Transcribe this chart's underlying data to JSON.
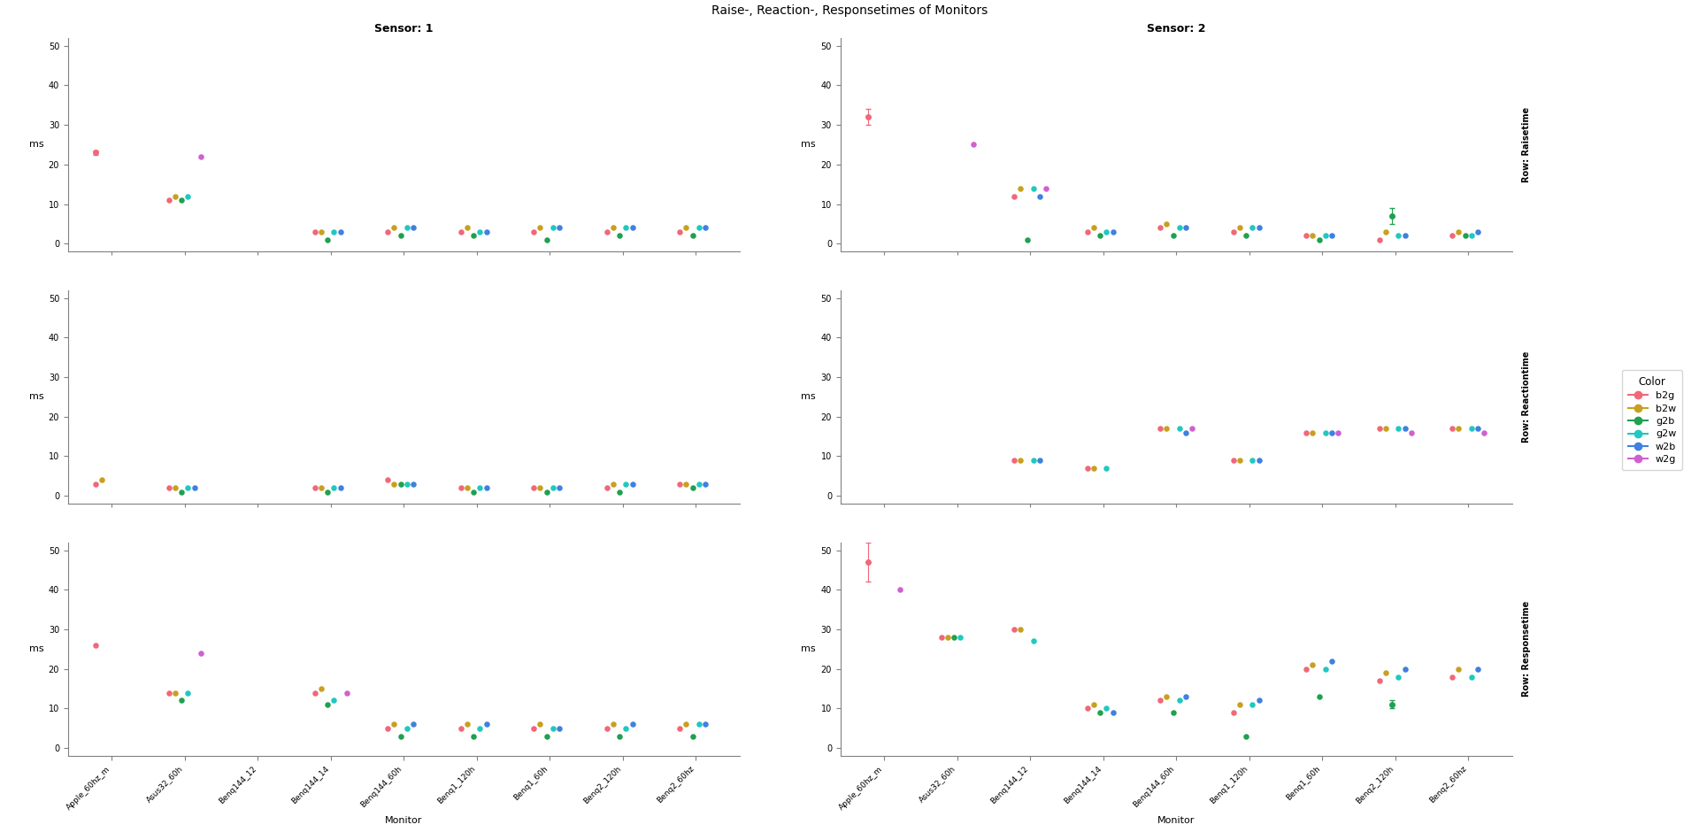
{
  "title": "Raise-, Reaction-, Responsetimes of Monitors",
  "sensors": [
    "Sensor: 1",
    "Sensor: 2"
  ],
  "rows": [
    "Raisetime",
    "Reactiontime",
    "Responsetime"
  ],
  "row_labels": [
    "Row: Raisetime",
    "Row: Reactiontime",
    "Row: Responsetime"
  ],
  "monitors": [
    "Apple_60hz_m",
    "Asus32_60h",
    "Benq144_12",
    "Benq144_14",
    "Benq144_60h",
    "Benq1_120h",
    "Benq1_60h",
    "Benq2_120h",
    "Benq2_60hz"
  ],
  "colors": {
    "b2g": "#F06878",
    "b2w": "#C8A020",
    "g2b": "#20A050",
    "g2w": "#20C8C0",
    "w2b": "#4080E0",
    "w2g": "#D060D0"
  },
  "color_order": [
    "b2g",
    "b2w",
    "g2b",
    "g2w",
    "w2b",
    "w2g"
  ],
  "ylabel": "ms",
  "xlabel": "Monitor",
  "data": {
    "sensor1": {
      "Raisetime": {
        "Apple_60hz_m": {
          "b2g": 23,
          "b2g_err": [
            0.5,
            0.5
          ]
        },
        "Asus32_60h": {
          "b2g": 11,
          "b2w": 12,
          "g2b": 11,
          "g2w": 12,
          "w2g": 22
        },
        "Benq144_12": {},
        "Benq144_14": {
          "b2g": 3,
          "b2w": 3,
          "g2b": 1,
          "g2w": 3,
          "w2b": 3
        },
        "Benq144_60h": {
          "b2g": 3,
          "b2w": 4,
          "g2b": 2,
          "g2w": 4,
          "w2b": 4
        },
        "Benq1_120h": {
          "b2g": 3,
          "b2w": 4,
          "g2b": 2,
          "g2w": 3,
          "w2b": 3
        },
        "Benq1_60h": {
          "b2g": 3,
          "b2w": 4,
          "g2b": 1,
          "g2w": 4,
          "w2b": 4
        },
        "Benq2_120h": {
          "b2g": 3,
          "b2w": 4,
          "g2b": 2,
          "g2w": 4,
          "w2b": 4
        },
        "Benq2_60hz": {
          "b2g": 3,
          "b2w": 4,
          "g2b": 2,
          "g2w": 4,
          "w2b": 4
        }
      },
      "Reactiontime": {
        "Apple_60hz_m": {
          "b2g": 3,
          "b2w": 4
        },
        "Asus32_60h": {
          "b2g": 2,
          "b2w": 2,
          "g2b": 1,
          "g2w": 2,
          "w2b": 2
        },
        "Benq144_12": {},
        "Benq144_14": {
          "b2g": 2,
          "b2w": 2,
          "g2b": 1,
          "g2w": 2,
          "w2b": 2
        },
        "Benq144_60h": {
          "b2g": 4,
          "b2w": 3,
          "g2b": 3,
          "g2w": 3,
          "w2b": 3
        },
        "Benq1_120h": {
          "b2g": 2,
          "b2w": 2,
          "g2b": 1,
          "g2w": 2,
          "w2b": 2
        },
        "Benq1_60h": {
          "b2g": 2,
          "b2w": 2,
          "g2b": 1,
          "g2w": 2,
          "w2b": 2
        },
        "Benq2_120h": {
          "b2g": 2,
          "b2w": 3,
          "g2b": 1,
          "g2w": 3,
          "w2b": 3
        },
        "Benq2_60hz": {
          "b2g": 3,
          "b2w": 3,
          "g2b": 2,
          "g2w": 3,
          "w2b": 3
        }
      },
      "Responsetime": {
        "Apple_60hz_m": {
          "b2g": 26
        },
        "Asus32_60h": {
          "b2g": 14,
          "b2w": 14,
          "g2b": 12,
          "g2w": 14,
          "w2g": 24
        },
        "Benq144_12": {},
        "Benq144_14": {
          "b2g": 14,
          "b2w": 15,
          "g2b": 11,
          "g2w": 12,
          "w2g": 14
        },
        "Benq144_60h": {
          "b2g": 5,
          "b2w": 6,
          "g2b": 3,
          "g2w": 5,
          "w2b": 6
        },
        "Benq1_120h": {
          "b2g": 5,
          "b2w": 6,
          "g2b": 3,
          "g2w": 5,
          "w2b": 6
        },
        "Benq1_60h": {
          "b2g": 5,
          "b2w": 6,
          "g2b": 3,
          "g2w": 5,
          "w2b": 5
        },
        "Benq2_120h": {
          "b2g": 5,
          "b2w": 6,
          "g2b": 3,
          "g2w": 5,
          "w2b": 6
        },
        "Benq2_60hz": {
          "b2g": 5,
          "b2w": 6,
          "g2b": 3,
          "g2w": 6,
          "w2b": 6
        }
      }
    },
    "sensor2": {
      "Raisetime": {
        "Apple_60hz_m": {
          "b2g": 32,
          "b2g_err": [
            2,
            2
          ]
        },
        "Asus32_60h": {
          "w2g": 25
        },
        "Benq144_12": {
          "b2g": 12,
          "b2w": 14,
          "g2b": 1,
          "g2w": 14,
          "w2b": 12,
          "w2g": 14
        },
        "Benq144_14": {
          "b2g": 3,
          "b2w": 4,
          "g2b": 2,
          "g2w": 3,
          "w2b": 3
        },
        "Benq144_60h": {
          "b2g": 4,
          "b2w": 5,
          "g2b": 2,
          "g2w": 4,
          "w2b": 4
        },
        "Benq1_120h": {
          "b2g": 3,
          "b2w": 4,
          "g2b": 2,
          "g2w": 4,
          "w2b": 4
        },
        "Benq1_60h": {
          "b2g": 2,
          "b2w": 2,
          "g2b": 1,
          "g2w": 2,
          "w2b": 2
        },
        "Benq2_120h": {
          "b2g": 1,
          "b2w": 3,
          "g2b": 7,
          "g2b_err": [
            2,
            2
          ],
          "g2w": 2,
          "w2b": 2
        },
        "Benq2_60hz": {
          "b2g": 2,
          "b2w": 3,
          "g2b": 2,
          "g2w": 2,
          "w2b": 3
        }
      },
      "Reactiontime": {
        "Apple_60hz_m": {},
        "Asus32_60h": {},
        "Benq144_12": {
          "b2g": 9,
          "b2w": 9,
          "g2w": 9,
          "w2b": 9
        },
        "Benq144_14": {
          "b2g": 7,
          "b2w": 7,
          "g2w": 7
        },
        "Benq144_60h": {
          "b2g": 17,
          "b2w": 17,
          "g2w": 17,
          "w2b": 16,
          "w2g": 17
        },
        "Benq1_120h": {
          "b2g": 9,
          "b2w": 9,
          "g2w": 9,
          "w2b": 9
        },
        "Benq1_60h": {
          "b2g": 16,
          "b2w": 16,
          "g2w": 16,
          "w2b": 16,
          "w2g": 16
        },
        "Benq2_120h": {
          "b2g": 17,
          "b2w": 17,
          "g2w": 17,
          "w2b": 17,
          "w2g": 16
        },
        "Benq2_60hz": {
          "b2g": 17,
          "b2w": 17,
          "g2w": 17,
          "w2b": 17,
          "w2g": 16
        }
      },
      "Responsetime": {
        "Apple_60hz_m": {
          "b2g": 47,
          "b2g_err": [
            5,
            5
          ],
          "w2g": 40
        },
        "Asus32_60h": {
          "b2g": 28,
          "b2w": 28,
          "g2b": 28,
          "g2w": 28
        },
        "Benq144_12": {
          "b2g": 30,
          "b2w": 30,
          "g2w": 27
        },
        "Benq144_14": {
          "b2g": 10,
          "b2w": 11,
          "g2b": 9,
          "g2w": 10,
          "w2b": 9
        },
        "Benq144_60h": {
          "b2g": 12,
          "b2w": 13,
          "g2b": 9,
          "g2w": 12,
          "w2b": 13
        },
        "Benq1_120h": {
          "b2g": 9,
          "b2w": 11,
          "g2b": 3,
          "g2w": 11,
          "w2b": 12
        },
        "Benq1_60h": {
          "b2g": 20,
          "b2w": 21,
          "g2b": 13,
          "g2w": 20,
          "w2b": 22
        },
        "Benq2_120h": {
          "b2g": 17,
          "b2w": 19,
          "g2b": 11,
          "g2w": 18,
          "w2b": 20,
          "g2b_err": [
            1,
            1
          ]
        },
        "Benq2_60hz": {
          "b2g": 18,
          "b2w": 20,
          "g2w": 18,
          "w2b": 20
        }
      }
    }
  }
}
